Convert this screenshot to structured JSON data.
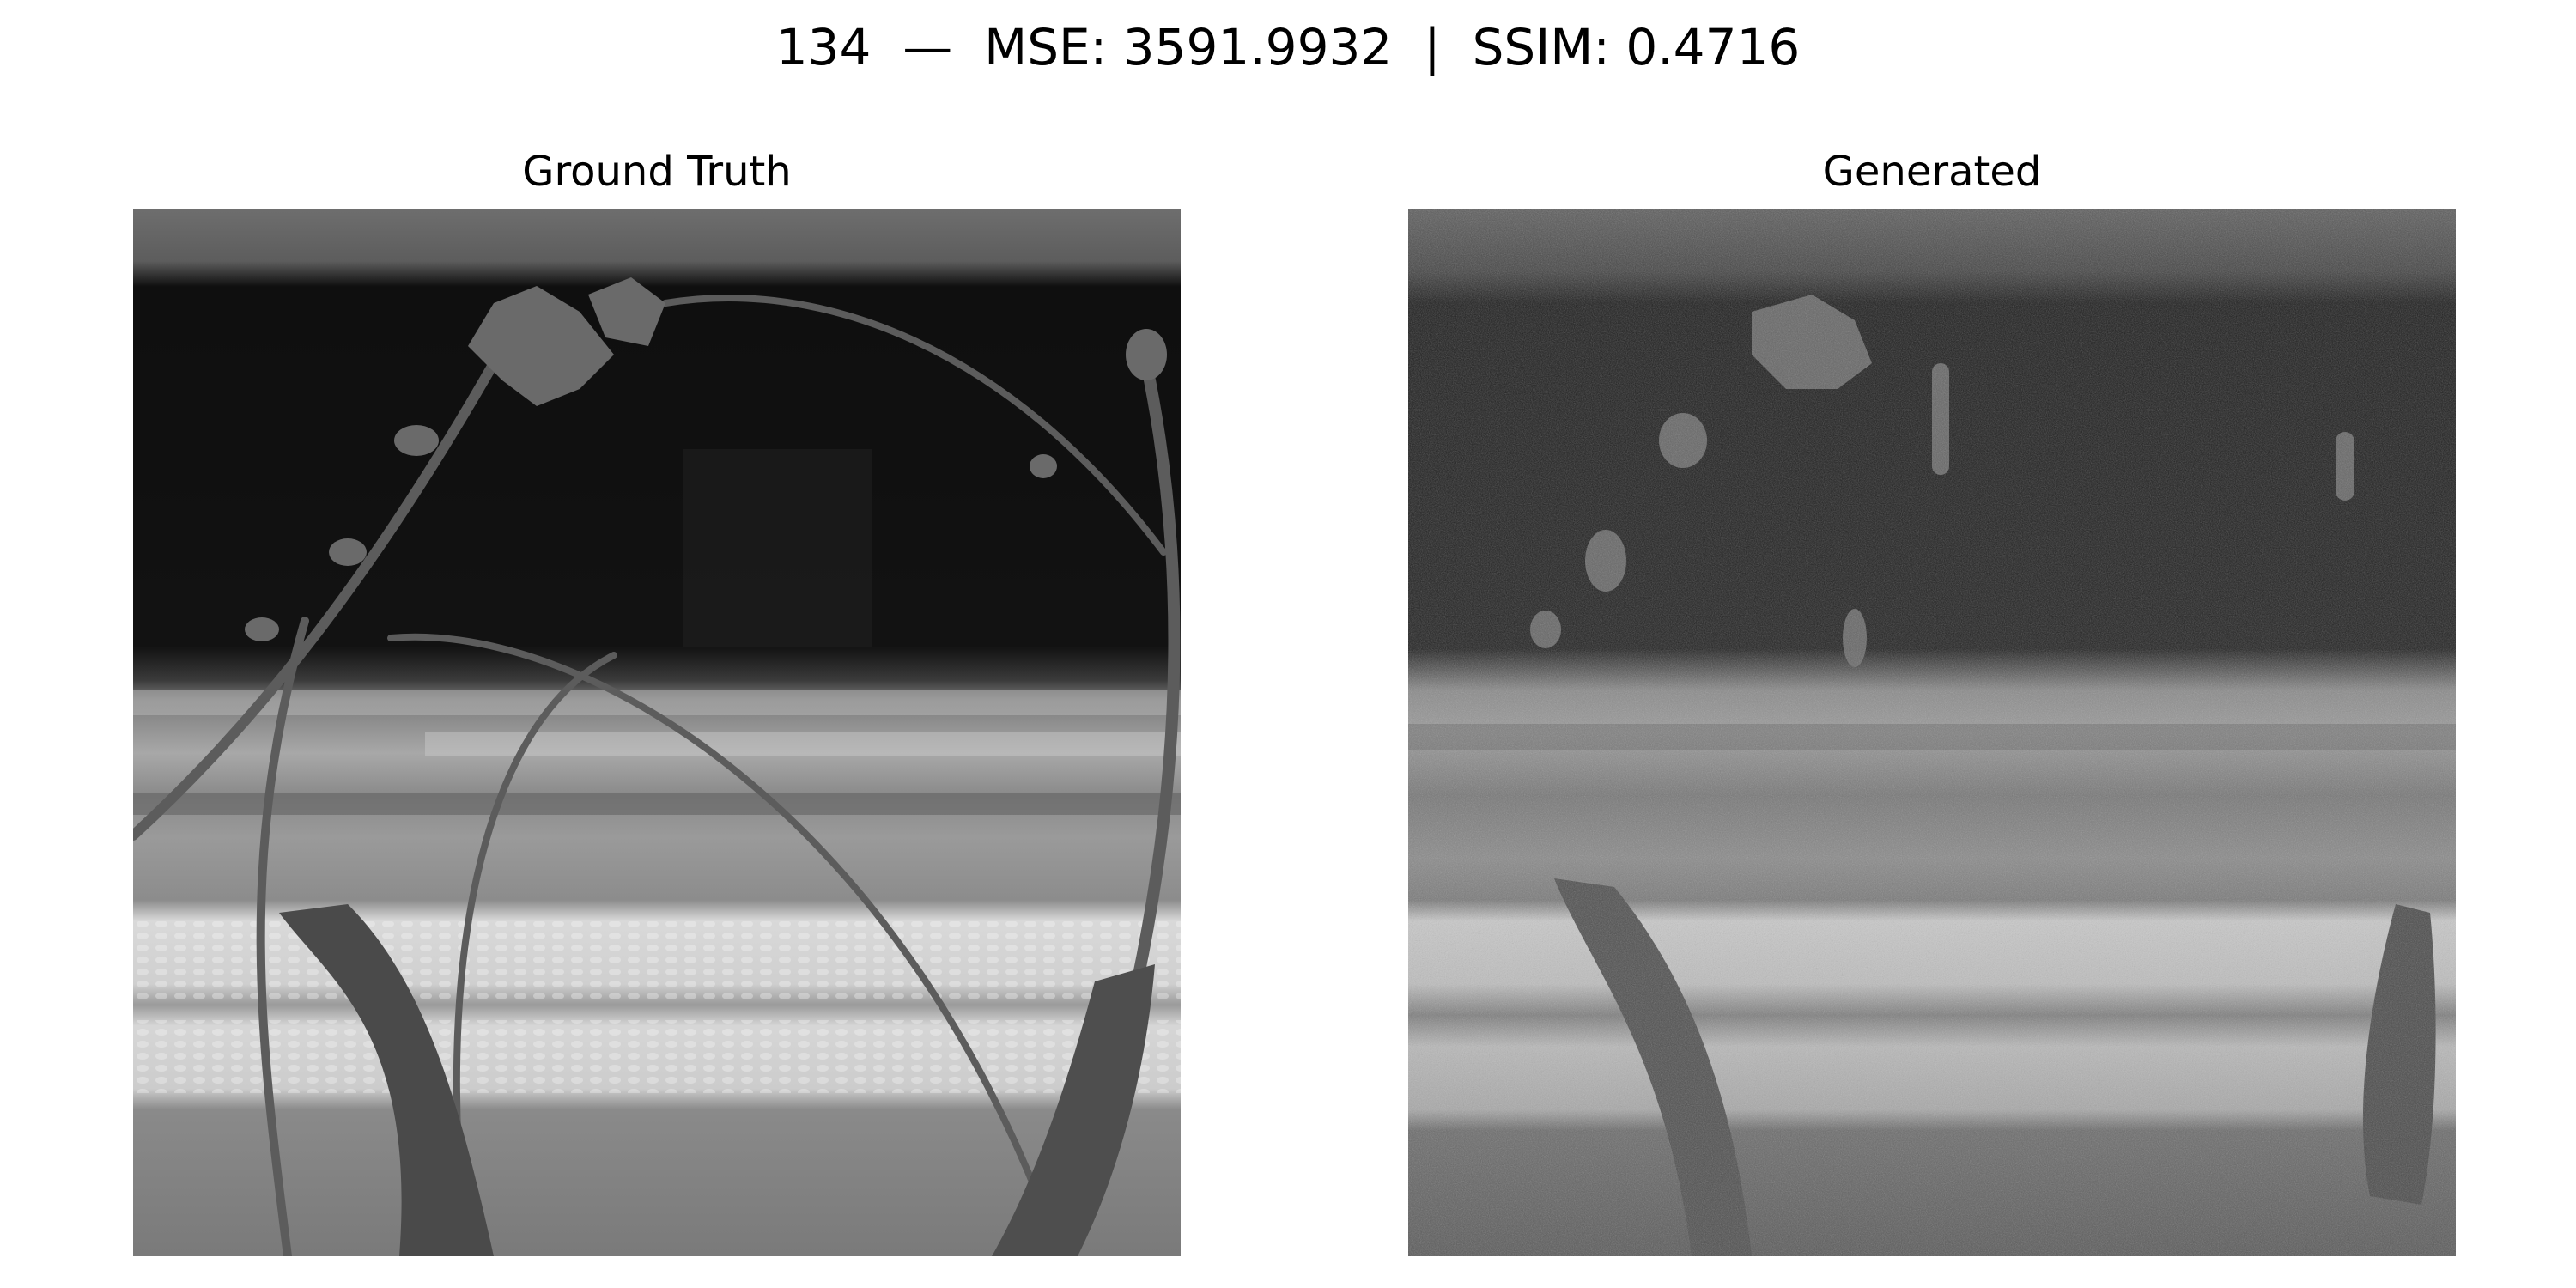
{
  "figure": {
    "title": "134  —  MSE: 3591.9932  |  SSIM: 0.4716"
  },
  "panels": [
    {
      "title": "Ground Truth",
      "content": "grayscale thermal image of vine stems and leaves against a window sill"
    },
    {
      "title": "Generated",
      "content": "noisy grayscale reconstruction of the same scene"
    }
  ]
}
